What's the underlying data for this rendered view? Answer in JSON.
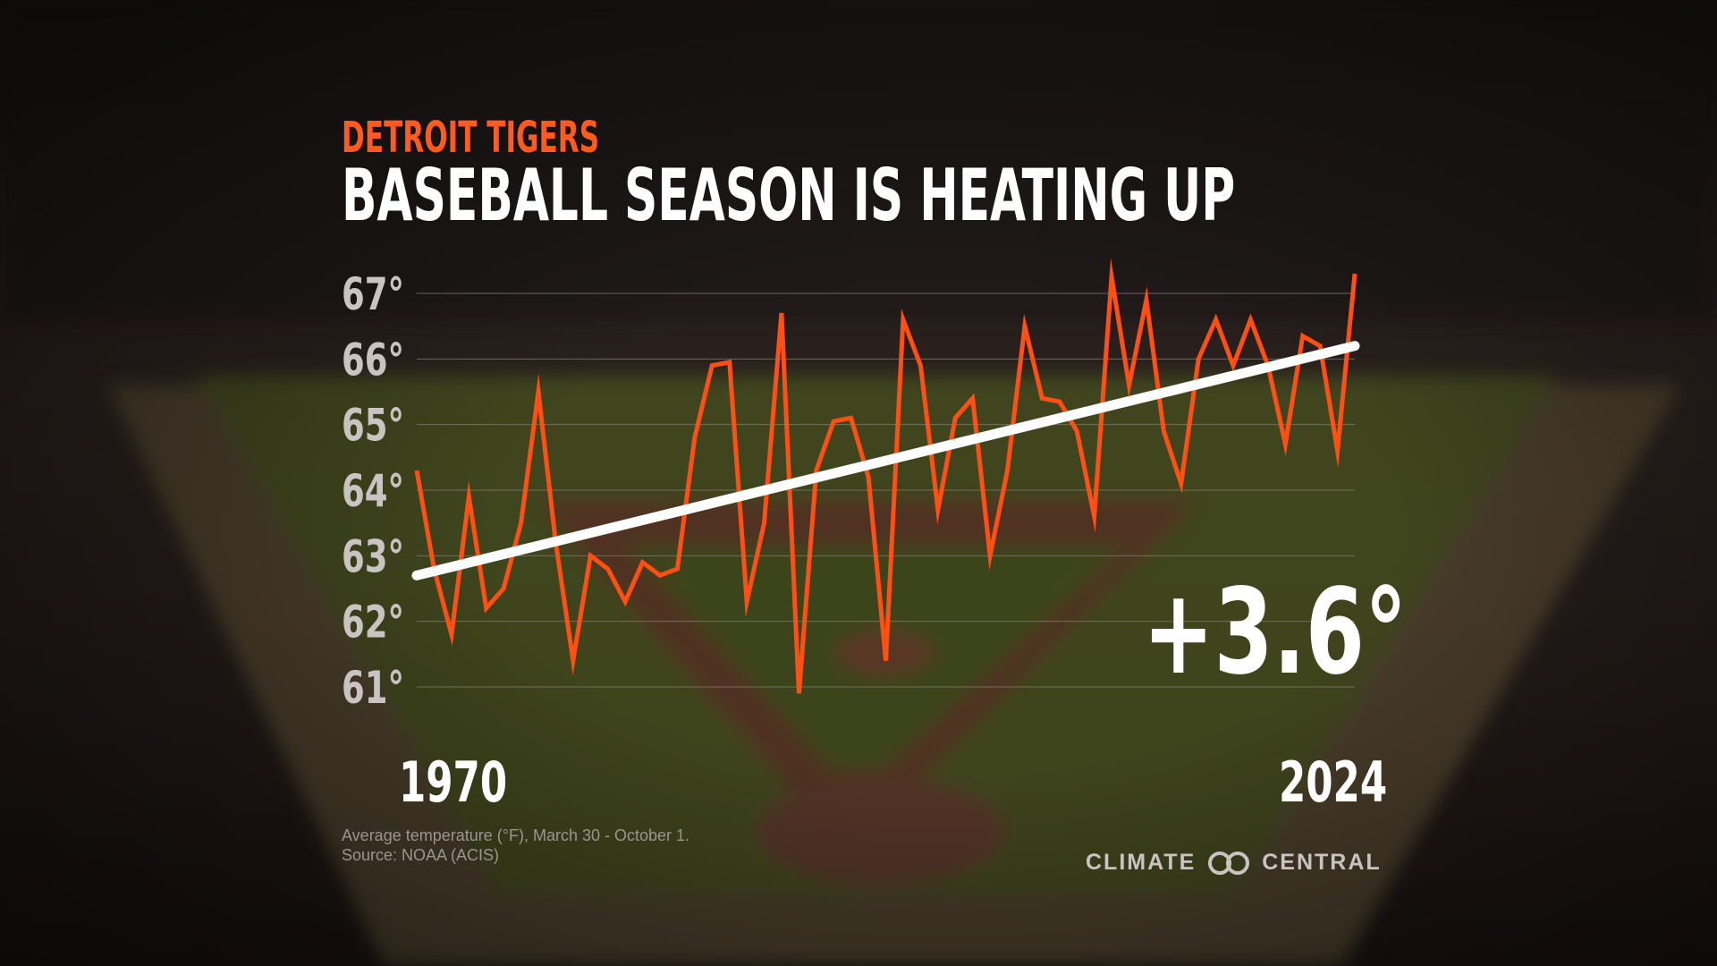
{
  "header": {
    "team": "DETROIT TIGERS",
    "title": "BASEBALL SEASON IS HEATING UP"
  },
  "colors": {
    "accent": "#ff4f12",
    "trend": "#ffffff",
    "gridline": "#8a817d"
  },
  "chart_data": {
    "type": "line",
    "title": "BASEBALL SEASON IS HEATING UP",
    "xlabel": "",
    "ylabel": "",
    "x_start_label": "1970",
    "x_end_label": "2024",
    "ylim": [
      61,
      67
    ],
    "y_ticks": [
      67,
      66,
      65,
      64,
      63,
      62,
      61
    ],
    "y_tick_labels": [
      "67°",
      "66°",
      "65°",
      "64°",
      "63°",
      "62°",
      "61°"
    ],
    "grid": true,
    "series": [
      {
        "name": "Average temperature (°F)",
        "x": [
          1970,
          1971,
          1972,
          1973,
          1974,
          1975,
          1976,
          1977,
          1978,
          1979,
          1980,
          1981,
          1982,
          1983,
          1984,
          1985,
          1986,
          1987,
          1988,
          1989,
          1990,
          1991,
          1992,
          1993,
          1994,
          1995,
          1996,
          1997,
          1998,
          1999,
          2000,
          2001,
          2002,
          2003,
          2004,
          2005,
          2006,
          2007,
          2008,
          2009,
          2010,
          2011,
          2012,
          2013,
          2014,
          2015,
          2016,
          2017,
          2018,
          2019,
          2020,
          2021,
          2022,
          2023,
          2024
        ],
        "values": [
          64.3,
          62.8,
          61.8,
          63.9,
          62.2,
          62.5,
          63.5,
          65.5,
          63.2,
          61.4,
          63.0,
          62.8,
          62.3,
          62.9,
          62.7,
          62.8,
          64.8,
          65.9,
          65.95,
          62.3,
          63.5,
          66.7,
          60.9,
          64.3,
          65.05,
          65.1,
          64.2,
          61.4,
          66.6,
          65.9,
          63.7,
          65.1,
          65.4,
          63.0,
          64.3,
          66.5,
          65.4,
          65.35,
          64.9,
          63.6,
          67.25,
          65.6,
          66.9,
          64.9,
          64.1,
          66.0,
          66.6,
          65.9,
          66.6,
          65.9,
          64.7,
          66.35,
          66.2,
          64.6,
          67.3
        ]
      },
      {
        "name": "Trend",
        "x": [
          1970,
          2024
        ],
        "values": [
          62.7,
          66.2
        ]
      }
    ],
    "annotation": "+3.6°"
  },
  "footer": {
    "note_line1": "Average temperature (°F), March 30 - October 1.",
    "note_line2": "Source: NOAA (ACIS)",
    "logo_left": "CLIMATE",
    "logo_right": "CENTRAL"
  }
}
